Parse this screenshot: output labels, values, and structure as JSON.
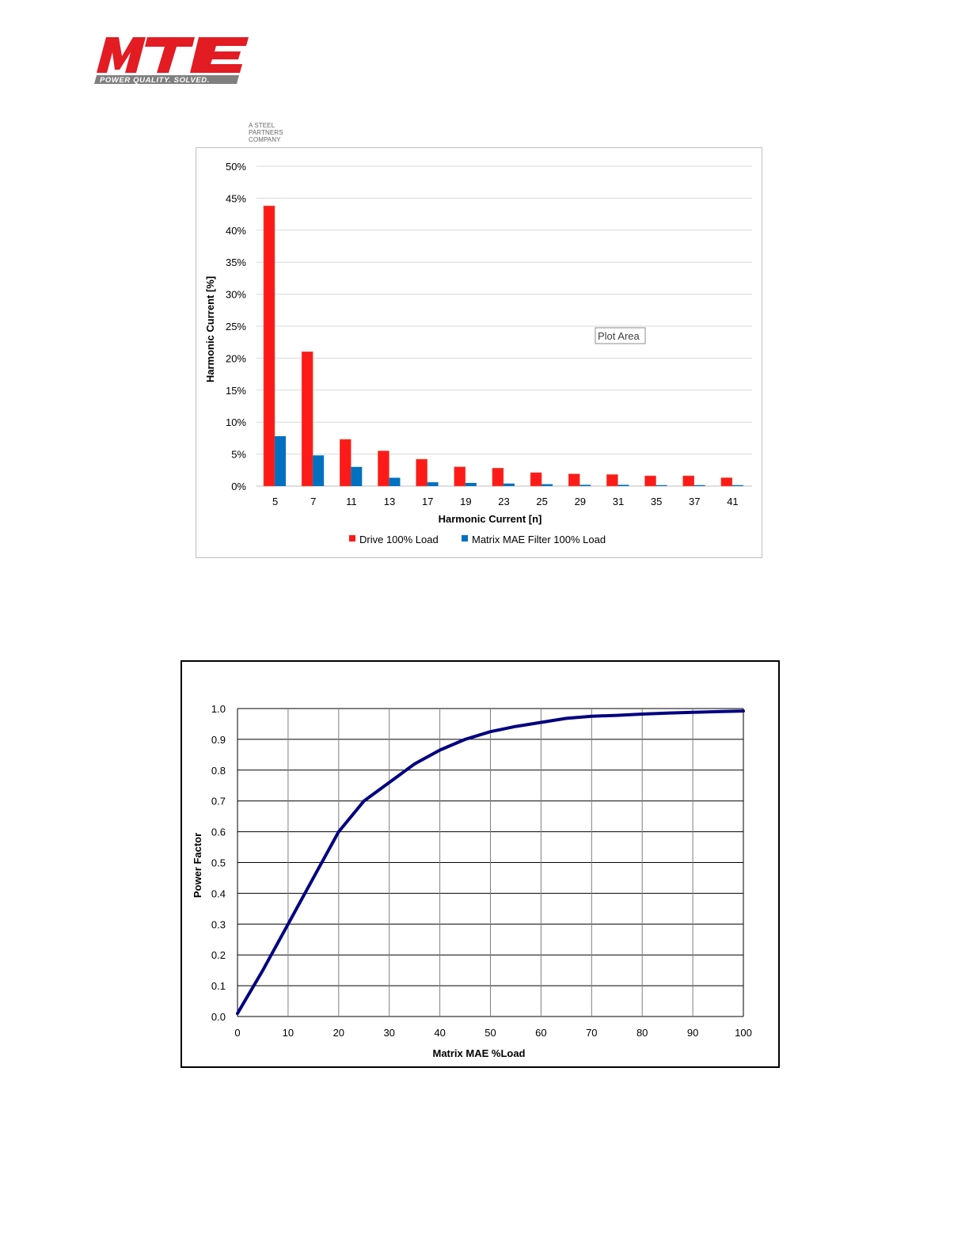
{
  "logo": {
    "brand": "MTE",
    "tagline": "POWER QUALITY. SOLVED.",
    "subtitle": "A STEEL PARTNERS COMPANY",
    "brand_color": "#e31b23",
    "tag_bg_color": "#7f7f7f"
  },
  "chart_data": [
    {
      "type": "bar",
      "title": "",
      "xlabel": "Harmonic Current [n]",
      "ylabel": "Harmonic Current [%]",
      "ylim": [
        0,
        50
      ],
      "y_tick_step": 5,
      "y_tick_suffix": "%",
      "grid": true,
      "legend": "bottom",
      "categories": [
        "5",
        "7",
        "11",
        "13",
        "17",
        "19",
        "23",
        "25",
        "29",
        "31",
        "35",
        "37",
        "41"
      ],
      "series": [
        {
          "name": "Drive 100% Load",
          "color": "#ff1a1a",
          "values": [
            43.8,
            21.0,
            7.3,
            5.5,
            4.2,
            3.0,
            2.8,
            2.1,
            1.9,
            1.8,
            1.6,
            1.6,
            1.3
          ]
        },
        {
          "name": "Matrix MAE Filter 100% Load",
          "color": "#0070c0",
          "values": [
            7.8,
            4.8,
            3.0,
            1.3,
            0.6,
            0.5,
            0.4,
            0.3,
            0.2,
            0.2,
            0.15,
            0.15,
            0.15
          ]
        }
      ],
      "annotation": "Plot Area"
    },
    {
      "type": "line",
      "title": "",
      "xlabel": "Matrix MAE %Load",
      "ylabel": "Power Factor",
      "xlim": [
        0,
        100
      ],
      "ylim": [
        0,
        1.0
      ],
      "x_ticks": [
        0,
        10,
        20,
        30,
        40,
        50,
        60,
        70,
        80,
        90,
        100
      ],
      "y_ticks": [
        "0.0",
        "0.1",
        "0.2",
        "0.3",
        "0.4",
        "0.5",
        "0.6",
        "0.7",
        "0.8",
        "0.9",
        "1.0"
      ],
      "grid": true,
      "line_color": "#000080",
      "series": [
        {
          "name": "",
          "x": [
            0,
            5,
            10,
            15,
            20,
            25,
            30,
            35,
            40,
            45,
            50,
            55,
            60,
            65,
            70,
            75,
            80,
            85,
            90,
            95,
            100
          ],
          "y": [
            0.01,
            0.15,
            0.3,
            0.45,
            0.6,
            0.7,
            0.76,
            0.82,
            0.865,
            0.9,
            0.925,
            0.942,
            0.955,
            0.968,
            0.975,
            0.978,
            0.982,
            0.985,
            0.988,
            0.99,
            0.992
          ]
        }
      ]
    }
  ]
}
